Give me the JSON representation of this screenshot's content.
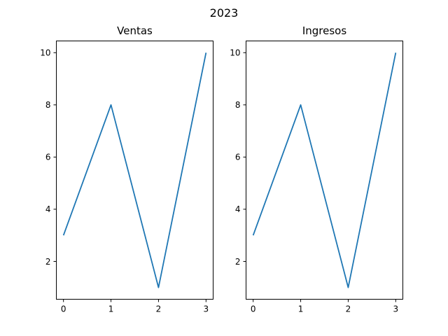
{
  "figure": {
    "suptitle": "2023"
  },
  "colors": {
    "line": "#1f77b4",
    "axis": "#000000"
  },
  "chart_data": [
    {
      "type": "line",
      "title": "Ventas",
      "xlabel": "",
      "ylabel": "",
      "x": [
        0,
        1,
        2,
        3
      ],
      "series": [
        {
          "values": [
            3,
            8,
            1,
            10
          ]
        }
      ],
      "xlim": [
        -0.15,
        3.15
      ],
      "ylim": [
        0.55,
        10.45
      ],
      "xticks": [
        0,
        1,
        2,
        3
      ],
      "yticks": [
        2,
        4,
        6,
        8,
        10
      ],
      "grid": false
    },
    {
      "type": "line",
      "title": "Ingresos",
      "xlabel": "",
      "ylabel": "",
      "x": [
        0,
        1,
        2,
        3
      ],
      "series": [
        {
          "values": [
            3,
            8,
            1,
            10
          ]
        }
      ],
      "xlim": [
        -0.15,
        3.15
      ],
      "ylim": [
        0.55,
        10.45
      ],
      "xticks": [
        0,
        1,
        2,
        3
      ],
      "yticks": [
        2,
        4,
        6,
        8,
        10
      ],
      "grid": false
    }
  ]
}
